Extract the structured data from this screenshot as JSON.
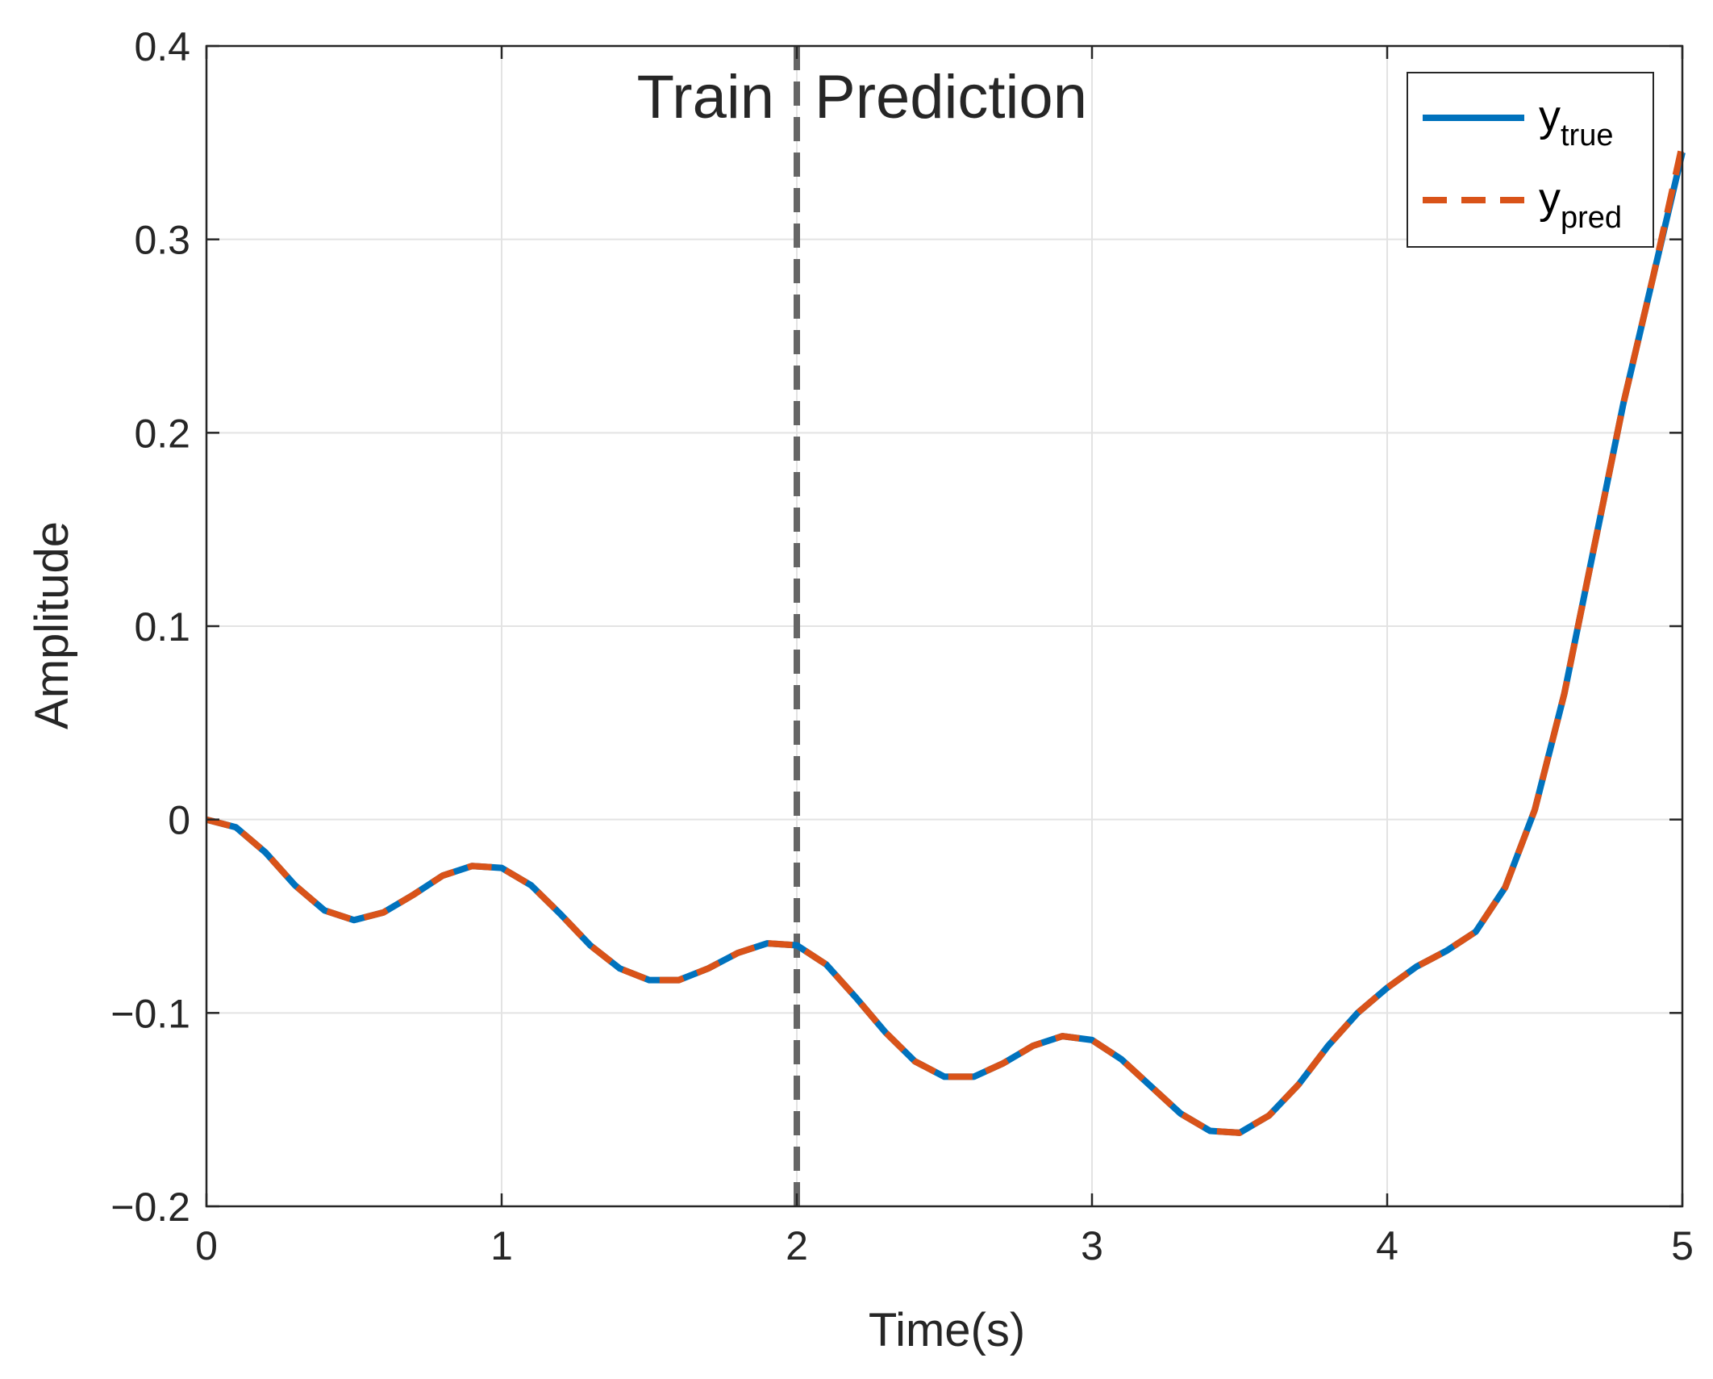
{
  "chart_data": {
    "type": "line",
    "xlabel": "Time(s)",
    "ylabel": "Amplitude",
    "xlim": [
      0,
      5
    ],
    "ylim": [
      -0.2,
      0.4
    ],
    "xticks": [
      0,
      1,
      2,
      3,
      4,
      5
    ],
    "xtick_labels": [
      "0",
      "1",
      "2",
      "3",
      "4",
      "5"
    ],
    "yticks": [
      -0.2,
      -0.1,
      0,
      0.1,
      0.2,
      0.3,
      0.4
    ],
    "ytick_labels": [
      "−0.2",
      "−0.1",
      "0",
      "0.1",
      "0.2",
      "0.3",
      "0.4"
    ],
    "grid": true,
    "legend_position": "top-right",
    "divider": {
      "x": 2,
      "style": "dashed",
      "color": "#666666"
    },
    "annotations": {
      "left": "Train",
      "right": "Prediction"
    },
    "series": [
      {
        "name": "y",
        "subscript": "true",
        "color": "#0072BD",
        "style": "solid",
        "x": [
          0,
          0.1,
          0.2,
          0.3,
          0.4,
          0.5,
          0.6,
          0.7,
          0.8,
          0.9,
          1.0,
          1.1,
          1.2,
          1.3,
          1.4,
          1.5,
          1.6,
          1.7,
          1.8,
          1.9,
          2.0,
          2.1,
          2.2,
          2.3,
          2.4,
          2.5,
          2.6,
          2.7,
          2.8,
          2.9,
          3.0,
          3.1,
          3.2,
          3.3,
          3.4,
          3.5,
          3.6,
          3.7,
          3.8,
          3.9,
          4.0,
          4.1,
          4.2,
          4.3,
          4.4,
          4.5,
          4.6,
          4.7,
          4.8,
          4.9,
          5.0
        ],
        "y": [
          0,
          -0.004,
          -0.017,
          -0.034,
          -0.047,
          -0.052,
          -0.048,
          -0.039,
          -0.029,
          -0.024,
          -0.025,
          -0.034,
          -0.049,
          -0.065,
          -0.077,
          -0.083,
          -0.083,
          -0.077,
          -0.069,
          -0.064,
          -0.065,
          -0.075,
          -0.092,
          -0.11,
          -0.125,
          -0.133,
          -0.133,
          -0.126,
          -0.117,
          -0.112,
          -0.114,
          -0.124,
          -0.138,
          -0.152,
          -0.161,
          -0.162,
          -0.153,
          -0.137,
          -0.117,
          -0.1,
          -0.087,
          -0.076,
          -0.068,
          -0.058,
          -0.035,
          0.005,
          0.065,
          0.14,
          0.215,
          0.28,
          0.345
        ]
      },
      {
        "name": "y",
        "subscript": "pred",
        "color": "#D95319",
        "style": "dashed",
        "x": [
          0,
          0.1,
          0.2,
          0.3,
          0.4,
          0.5,
          0.6,
          0.7,
          0.8,
          0.9,
          1.0,
          1.1,
          1.2,
          1.3,
          1.4,
          1.5,
          1.6,
          1.7,
          1.8,
          1.9,
          2.0,
          2.1,
          2.2,
          2.3,
          2.4,
          2.5,
          2.6,
          2.7,
          2.8,
          2.9,
          3.0,
          3.1,
          3.2,
          3.3,
          3.4,
          3.5,
          3.6,
          3.7,
          3.8,
          3.9,
          4.0,
          4.1,
          4.2,
          4.3,
          4.4,
          4.5,
          4.6,
          4.7,
          4.8,
          4.9,
          5.0
        ],
        "y": [
          0,
          -0.004,
          -0.017,
          -0.034,
          -0.047,
          -0.052,
          -0.048,
          -0.039,
          -0.029,
          -0.024,
          -0.025,
          -0.034,
          -0.049,
          -0.065,
          -0.077,
          -0.083,
          -0.083,
          -0.077,
          -0.069,
          -0.064,
          -0.065,
          -0.075,
          -0.092,
          -0.11,
          -0.125,
          -0.133,
          -0.133,
          -0.126,
          -0.117,
          -0.112,
          -0.114,
          -0.124,
          -0.138,
          -0.152,
          -0.161,
          -0.162,
          -0.153,
          -0.137,
          -0.117,
          -0.1,
          -0.087,
          -0.076,
          -0.068,
          -0.058,
          -0.035,
          0.005,
          0.065,
          0.14,
          0.215,
          0.28,
          0.349
        ]
      }
    ]
  }
}
